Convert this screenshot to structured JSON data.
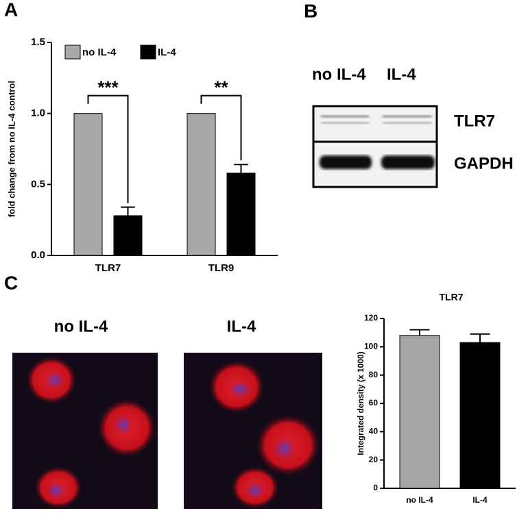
{
  "panel_labels": [
    "A",
    "B",
    "C"
  ],
  "chart_data": [
    {
      "type": "bar",
      "y_label": "fold change from no IL-4 control",
      "categories": [
        "TLR7",
        "TLR9"
      ],
      "series": [
        {
          "name": "no IL-4",
          "color": "#a8a8a8",
          "values": [
            1.0,
            1.0
          ]
        },
        {
          "name": "IL-4",
          "color": "#000000",
          "values": [
            0.28,
            0.58
          ],
          "errors": [
            0.06,
            0.06
          ]
        }
      ],
      "ylim": [
        0,
        1.5
      ],
      "yticks": [
        {
          "value": 0,
          "label": "0.0"
        },
        {
          "value": 0.5,
          "label": "0.5"
        },
        {
          "value": 1.0,
          "label": "1.0"
        },
        {
          "value": 1.5,
          "label": "1.5"
        }
      ],
      "legend": "top-left",
      "annotations": [
        "***",
        "**"
      ]
    },
    {
      "type": "bar",
      "title": "TLR7",
      "y_label": "Integrated density (x 1000)",
      "categories": [
        "no IL-4",
        "IL-4"
      ],
      "values": [
        108,
        103
      ],
      "errors": [
        4,
        6
      ],
      "colors": [
        "#a6a6a8",
        "#000000"
      ],
      "ylim": [
        0,
        120
      ],
      "yticks": [
        0,
        20,
        40,
        60,
        80,
        100,
        120
      ]
    }
  ],
  "blot": {
    "columns": [
      "no IL-4",
      "IL-4"
    ],
    "rows": [
      "TLR7",
      "GAPDH"
    ]
  },
  "images": {
    "labels": [
      "no IL-4",
      "IL-4"
    ]
  }
}
